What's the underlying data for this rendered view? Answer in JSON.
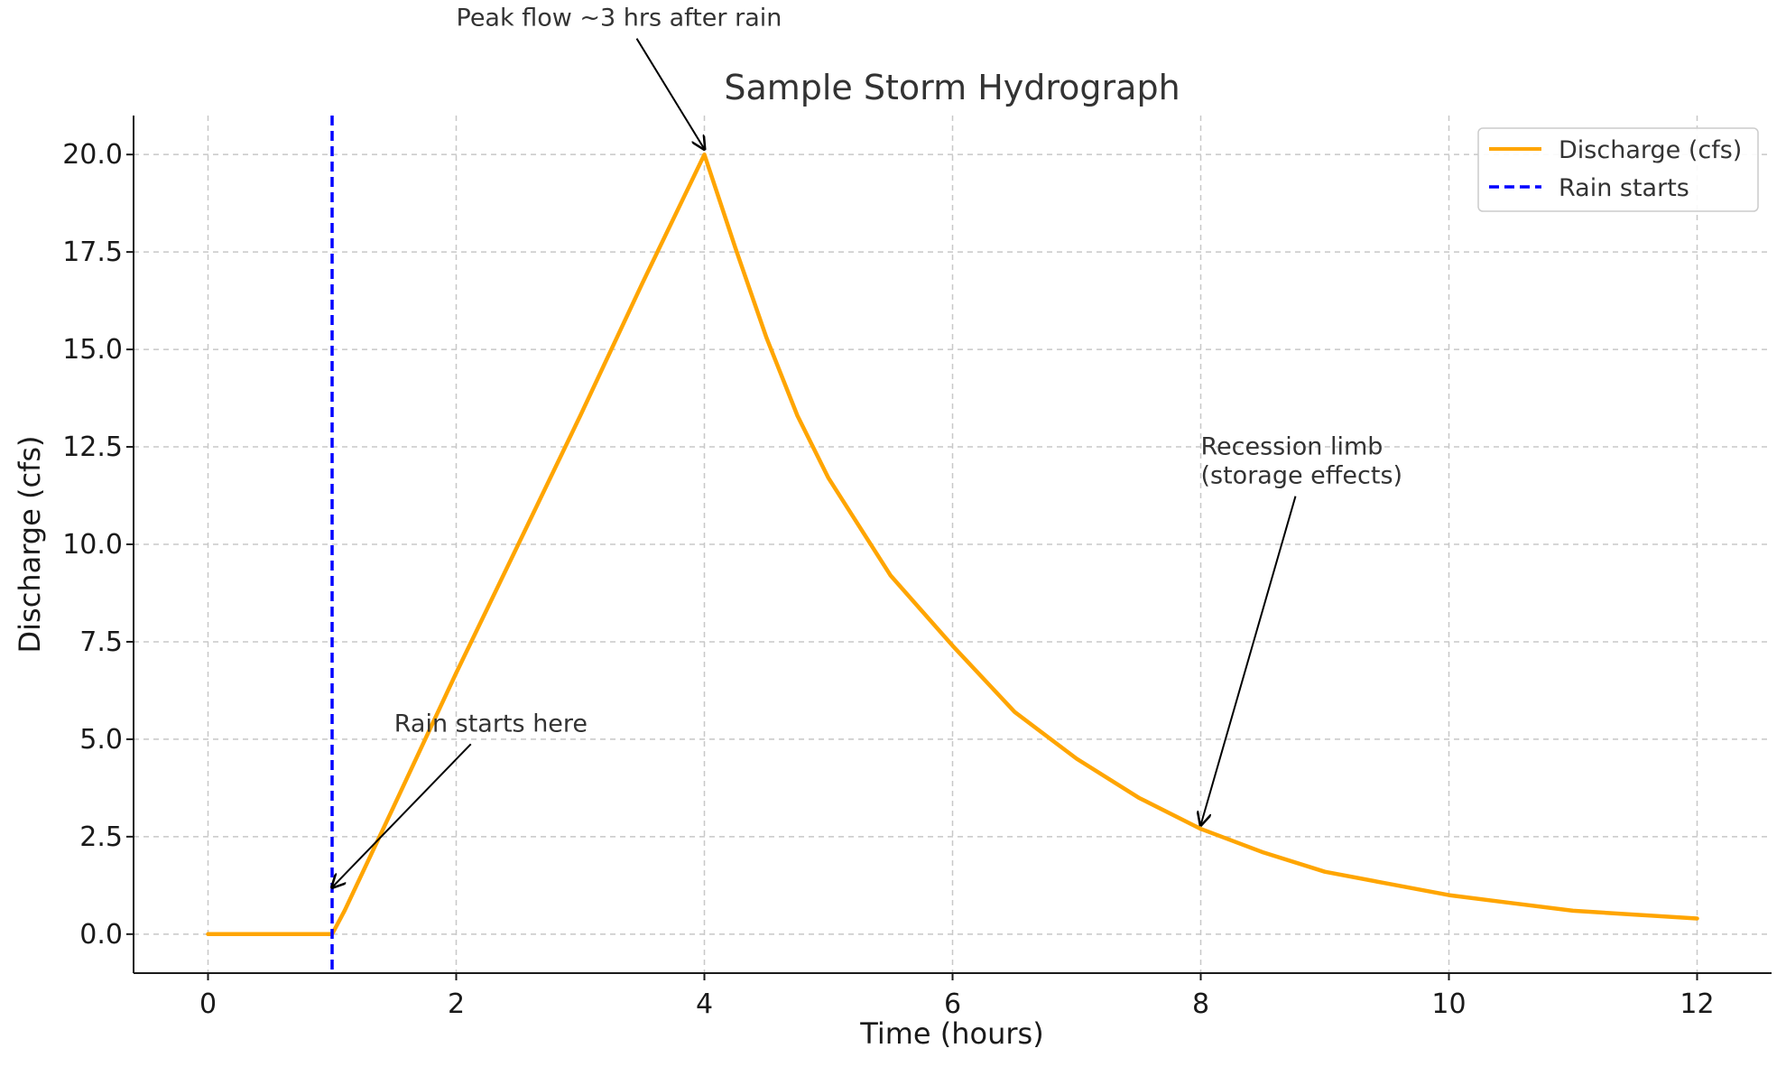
{
  "chart_data": {
    "type": "line",
    "title": "Sample Storm Hydrograph",
    "xlabel": "Time (hours)",
    "ylabel": "Discharge (cfs)",
    "xlim": [
      -0.6,
      12.6
    ],
    "ylim": [
      -1.0,
      21.0
    ],
    "xticks": [
      0,
      2,
      4,
      6,
      8,
      10,
      12
    ],
    "xtick_labels": [
      "0",
      "2",
      "4",
      "6",
      "8",
      "10",
      "12"
    ],
    "yticks": [
      0,
      2.5,
      5,
      7.5,
      10,
      12.5,
      15,
      17.5,
      20
    ],
    "ytick_labels": [
      "0.0",
      "2.5",
      "5.0",
      "7.5",
      "10.0",
      "12.5",
      "15.0",
      "17.5",
      "20.0"
    ],
    "grid": true,
    "legend_position": "top-right",
    "series": [
      {
        "name": "Discharge (cfs)",
        "color": "#ffa500",
        "style": "solid",
        "x": [
          0,
          1,
          1.1,
          1.5,
          2,
          2.5,
          3,
          3.5,
          4,
          4.25,
          4.5,
          4.75,
          5,
          5.5,
          6,
          6.5,
          7,
          7.5,
          8,
          8.5,
          9,
          9.5,
          10,
          10.5,
          11,
          11.5,
          12
        ],
        "y": [
          0,
          0,
          0.6,
          3.3,
          6.7,
          10.0,
          13.3,
          16.7,
          20.0,
          17.6,
          15.3,
          13.3,
          11.7,
          9.2,
          7.4,
          5.7,
          4.5,
          3.5,
          2.7,
          2.1,
          1.6,
          1.3,
          1.0,
          0.8,
          0.6,
          0.5,
          0.4
        ]
      },
      {
        "name": "Rain starts",
        "color": "#0000ff",
        "style": "dashed",
        "vline_x": 1
      }
    ],
    "annotations": [
      {
        "text": "Peak flow ~3 hrs after rain",
        "x": 4,
        "y": 20,
        "text_x": 2,
        "text_y": 23.3
      },
      {
        "text": "Rain starts here",
        "x": 1,
        "y": 1.2,
        "text_x": 1.5,
        "text_y": 5.2
      },
      {
        "text": "Recession limb\n(storage effects)",
        "x": 8,
        "y": 2.8,
        "text_x": 8,
        "text_y": 12.3
      }
    ]
  }
}
